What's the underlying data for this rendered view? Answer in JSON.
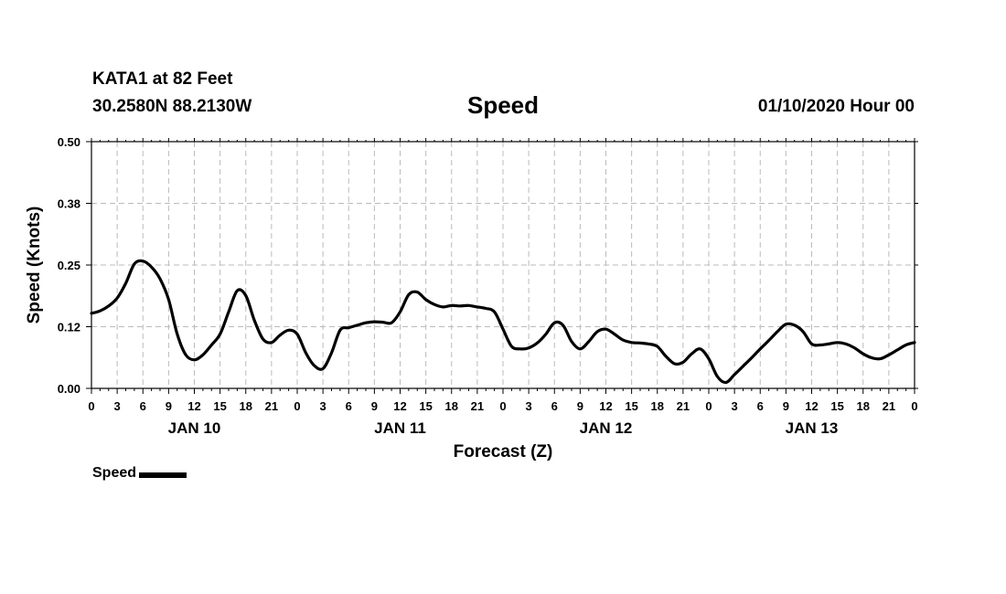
{
  "header": {
    "station": "KATA1 at 82 Feet",
    "coords": "30.2580N 88.2130W",
    "title": "Speed",
    "datetime": "01/10/2020 Hour 00"
  },
  "colors": {
    "line": "#000000",
    "grid": "#bbbbbb",
    "background": "#ffffff"
  },
  "chart_data": {
    "type": "line",
    "title": "Speed",
    "xlabel": "Forecast (Z)",
    "ylabel": "Speed (Knots)",
    "xlim": [
      0,
      96
    ],
    "ylim": [
      0,
      0.5
    ],
    "grid": true,
    "yticks": [
      0.0,
      0.125,
      0.25,
      0.375,
      0.5
    ],
    "ytick_labels": [
      "0.00",
      "0.12",
      "0.25",
      "0.38",
      "0.50"
    ],
    "xticks": [
      0,
      3,
      6,
      9,
      12,
      15,
      18,
      21,
      24,
      27,
      30,
      33,
      36,
      39,
      42,
      45,
      48,
      51,
      54,
      57,
      60,
      63,
      66,
      69,
      72,
      75,
      78,
      81,
      84,
      87,
      90,
      93,
      96
    ],
    "xtick_labels": [
      "0",
      "3",
      "6",
      "9",
      "12",
      "15",
      "18",
      "21",
      "0",
      "3",
      "6",
      "9",
      "12",
      "15",
      "18",
      "21",
      "0",
      "3",
      "6",
      "9",
      "12",
      "15",
      "18",
      "21",
      "0",
      "3",
      "6",
      "9",
      "12",
      "15",
      "18",
      "21",
      "0"
    ],
    "day_labels": [
      {
        "x": 12,
        "label": "JAN 10"
      },
      {
        "x": 36,
        "label": "JAN 11"
      },
      {
        "x": 60,
        "label": "JAN 12"
      },
      {
        "x": 84,
        "label": "JAN 13"
      }
    ],
    "series": [
      {
        "name": "Speed",
        "x": [
          0,
          1,
          2,
          3,
          4,
          5,
          6,
          7,
          8,
          9,
          10,
          11,
          12,
          13,
          14,
          15,
          16,
          17,
          18,
          19,
          20,
          21,
          22,
          23,
          24,
          25,
          26,
          27,
          28,
          29,
          30,
          31,
          32,
          33,
          34,
          35,
          36,
          37,
          38,
          39,
          40,
          41,
          42,
          43,
          44,
          45,
          46,
          47,
          48,
          49,
          50,
          51,
          52,
          53,
          54,
          55,
          56,
          57,
          58,
          59,
          60,
          61,
          62,
          63,
          64,
          65,
          66,
          67,
          68,
          69,
          70,
          71,
          72,
          73,
          74,
          75,
          76,
          77,
          78,
          79,
          80,
          81,
          82,
          83,
          84,
          85,
          86,
          87,
          88,
          89,
          90,
          91,
          92,
          93,
          94,
          95,
          96
        ],
        "values": [
          0.152,
          0.157,
          0.167,
          0.183,
          0.213,
          0.252,
          0.258,
          0.246,
          0.222,
          0.18,
          0.11,
          0.068,
          0.058,
          0.068,
          0.088,
          0.11,
          0.155,
          0.198,
          0.188,
          0.138,
          0.1,
          0.093,
          0.108,
          0.118,
          0.11,
          0.072,
          0.046,
          0.04,
          0.072,
          0.118,
          0.123,
          0.128,
          0.133,
          0.135,
          0.134,
          0.133,
          0.155,
          0.19,
          0.195,
          0.18,
          0.17,
          0.165,
          0.168,
          0.167,
          0.168,
          0.165,
          0.162,
          0.155,
          0.12,
          0.085,
          0.08,
          0.082,
          0.092,
          0.11,
          0.133,
          0.128,
          0.095,
          0.08,
          0.095,
          0.115,
          0.12,
          0.11,
          0.098,
          0.093,
          0.092,
          0.09,
          0.085,
          0.065,
          0.05,
          0.053,
          0.07,
          0.08,
          0.06,
          0.024,
          0.012,
          0.028,
          0.045,
          0.062,
          0.08,
          0.097,
          0.115,
          0.13,
          0.128,
          0.115,
          0.09,
          0.088,
          0.09,
          0.093,
          0.09,
          0.082,
          0.07,
          0.062,
          0.06,
          0.068,
          0.078,
          0.088,
          0.093
        ]
      }
    ],
    "legend": {
      "label": "Speed",
      "position": "bottom-left"
    }
  }
}
